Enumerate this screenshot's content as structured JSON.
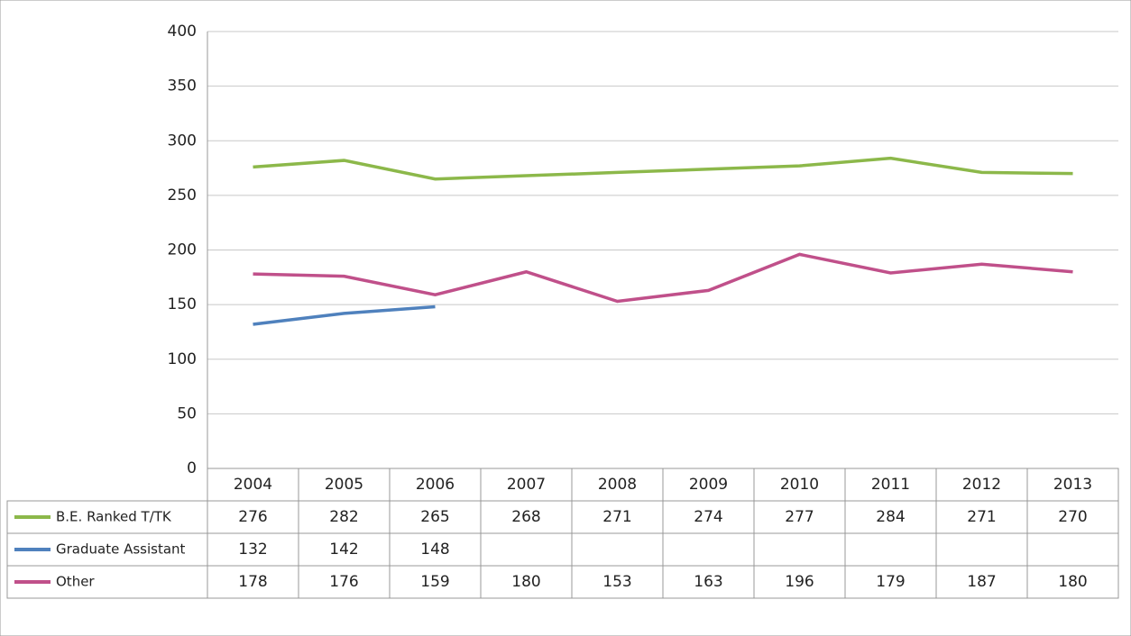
{
  "chart_data": {
    "type": "line",
    "categories": [
      "2004",
      "2005",
      "2006",
      "2007",
      "2008",
      "2009",
      "2010",
      "2011",
      "2012",
      "2013"
    ],
    "series": [
      {
        "name": "B.E. Ranked T/TK",
        "color": "#8cb84a",
        "values": [
          276,
          282,
          265,
          268,
          271,
          274,
          277,
          284,
          271,
          270
        ]
      },
      {
        "name": "Graduate Assistant",
        "color": "#4f81bd",
        "values": [
          132,
          142,
          148,
          null,
          null,
          null,
          null,
          null,
          null,
          null
        ]
      },
      {
        "name": "Other",
        "color": "#c0508a",
        "values": [
          178,
          176,
          159,
          180,
          153,
          163,
          196,
          179,
          187,
          180
        ]
      }
    ],
    "ylim": [
      0,
      400
    ],
    "yticks": [
      0,
      50,
      100,
      150,
      200,
      250,
      300,
      350,
      400
    ],
    "grid": true
  }
}
